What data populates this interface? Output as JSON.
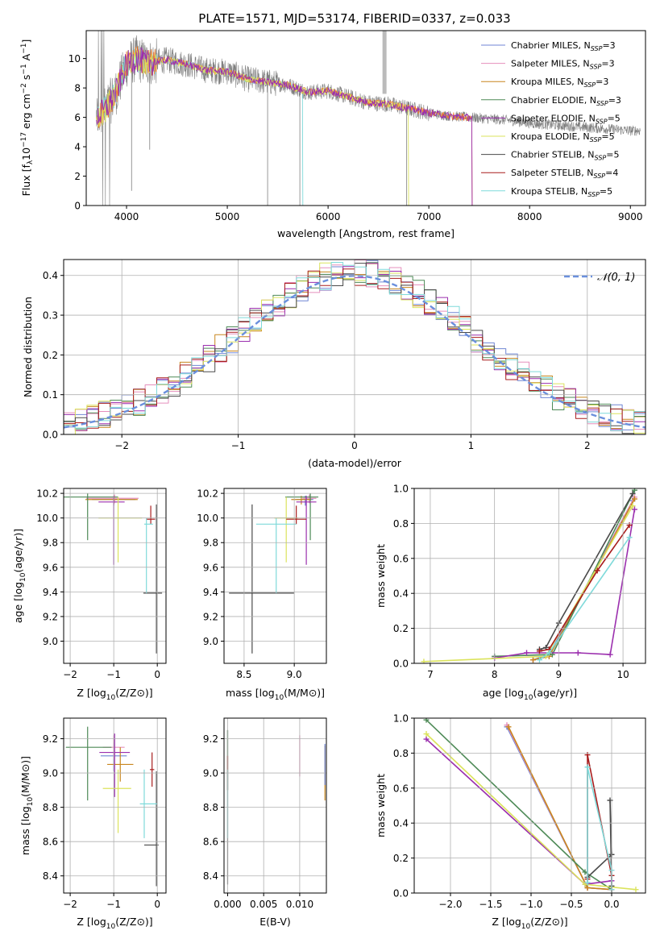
{
  "title": "PLATE=1571, MJD=53174, FIBERID=0337, z=0.033",
  "colors": {
    "Chabrier MILES": "#6f86d4",
    "Salpeter MILES": "#e58fbc",
    "Kroupa MILES": "#c8861e",
    "Chabrier ELODIE": "#4e8a57",
    "Salpeter ELODIE": "#9b2fae",
    "Kroupa ELODIE": "#dbe35c",
    "Chabrier STELIB": "#4a4a4a",
    "Salpeter STELIB": "#a81d1d",
    "Kroupa STELIB": "#7fdada",
    "data": "#7f7f7f",
    "model_orange": "#f08030",
    "normal": "#6a8fdc"
  },
  "chart_data": [
    {
      "id": "spectrum",
      "type": "line",
      "title": "PLATE=1571, MJD=53174, FIBERID=0337, z=0.033",
      "xlabel": "wavelength [Angstrom, rest frame]",
      "ylabel": "Flux [f_λ10^-17 erg cm^-2 s^-1 A^-1]",
      "xlim": [
        3600,
        9150
      ],
      "ylim": [
        0,
        11.9
      ],
      "xticks": [
        4000,
        5000,
        6000,
        7000,
        8000,
        9000
      ],
      "yticks": [
        0,
        2,
        4,
        6,
        8,
        10
      ],
      "legend_position": "top-right",
      "legend": [
        {
          "base": "Chabrier MILES, N",
          "sub": "SSP",
          "tail": "=3"
        },
        {
          "base": "Salpeter MILES, N",
          "sub": "SSP",
          "tail": "=3"
        },
        {
          "base": "Kroupa MILES, N",
          "sub": "SSP",
          "tail": "=3"
        },
        {
          "base": "Chabrier ELODIE, N",
          "sub": "SSP",
          "tail": "=3"
        },
        {
          "base": "Salpeter ELODIE, N",
          "sub": "SSP",
          "tail": "=5"
        },
        {
          "base": "Kroupa ELODIE, N",
          "sub": "SSP",
          "tail": "=5"
        },
        {
          "base": "Chabrier STELIB, N",
          "sub": "SSP",
          "tail": "=5"
        },
        {
          "base": "Salpeter STELIB, N",
          "sub": "SSP",
          "tail": "=4"
        },
        {
          "base": "Kroupa STELIB, N",
          "sub": "SSP",
          "tail": "=5"
        }
      ],
      "continuum": {
        "x": [
          3700,
          3800,
          3900,
          4000,
          4100,
          4200,
          4400,
          4600,
          4800,
          5000,
          5200,
          5400,
          5600,
          5800,
          6000,
          6200,
          6400,
          6600,
          6800,
          7000,
          7200,
          7400,
          7600,
          7800,
          8000,
          8200,
          8400,
          8600,
          8800,
          9000
        ],
        "y": [
          6.0,
          6.6,
          7.8,
          9.6,
          10.0,
          9.7,
          9.9,
          9.6,
          9.2,
          9.1,
          8.6,
          8.4,
          8.2,
          7.7,
          7.8,
          7.4,
          7.0,
          6.9,
          6.6,
          6.3,
          6.1,
          6.0,
          5.9,
          5.8,
          5.6,
          5.5,
          5.4,
          5.3,
          5.2,
          5.1
        ]
      },
      "data_xrange": [
        3700,
        9100
      ],
      "model_end": {
        "Kroupa STELIB": 5750,
        "Kroupa ELODIE": 6800,
        "Chabrier MILES": 7430
      }
    },
    {
      "id": "residuals",
      "type": "histogram",
      "xlabel": "(data-model)/error",
      "ylabel": "Normed distribution",
      "xlim": [
        -2.5,
        2.5
      ],
      "ylim": [
        0,
        0.44
      ],
      "xticks": [
        -2,
        -1,
        0,
        1,
        2
      ],
      "yticks": [
        0.0,
        0.1,
        0.2,
        0.3,
        0.4
      ],
      "bin_width": 0.1,
      "legend": [
        {
          "label": "𝒩(0, 1)",
          "style": "dashed"
        }
      ],
      "legend_position": "top-right",
      "note": "step histograms for the 9 SSP fits plus standard normal PDF"
    },
    {
      "id": "age-vs-Z",
      "type": "errorbar",
      "xlabel_base": "Z [log",
      "xlabel_sub": "10",
      "xlabel_tail": "(Z/Z⊙)]",
      "ylabel": "age  [log10(age/yr)]",
      "xlim": [
        -2.15,
        0.2
      ],
      "ylim": [
        8.82,
        10.24
      ],
      "xticks": [
        -2,
        -1,
        0
      ],
      "yticks": [
        9.0,
        9.2,
        9.4,
        9.6,
        9.8,
        10.0,
        10.2
      ],
      "points": [
        {
          "model": "Chabrier MILES",
          "x": -1.0,
          "xerr": [
            0.5,
            0.5
          ],
          "y": 10.15,
          "yerr": [
            0.05,
            0.03
          ]
        },
        {
          "model": "Salpeter MILES",
          "x": -0.98,
          "xerr": [
            0.65,
            0.55
          ],
          "y": 10.16,
          "yerr": [
            0.04,
            0.03
          ]
        },
        {
          "model": "Kroupa MILES",
          "x": -1.0,
          "xerr": [
            0.65,
            0.55
          ],
          "y": 10.15,
          "yerr": [
            0.04,
            0.03
          ]
        },
        {
          "model": "Chabrier ELODIE",
          "x": -1.6,
          "xerr": [
            0.55,
            0.7
          ],
          "y": 10.17,
          "yerr": [
            0.35,
            0.03
          ]
        },
        {
          "model": "Salpeter ELODIE",
          "x": -1.0,
          "xerr": [
            0.35,
            0.25
          ],
          "y": 10.13,
          "yerr": [
            0.51,
            0.05
          ]
        },
        {
          "model": "Kroupa ELODIE",
          "x": -0.9,
          "xerr": [
            0.45,
            0.55
          ],
          "y": 10.0,
          "yerr": [
            0.36,
            0.17
          ]
        },
        {
          "model": "Chabrier STELIB",
          "x": -0.02,
          "xerr": [
            0.3,
            0.13
          ],
          "y": 9.39,
          "yerr": [
            0.49,
            0.72
          ]
        },
        {
          "model": "Salpeter STELIB",
          "x": -0.15,
          "xerr": [
            0.1,
            0.1
          ],
          "y": 9.99,
          "yerr": [
            0.04,
            0.11
          ]
        },
        {
          "model": "Kroupa STELIB",
          "x": -0.25,
          "xerr": [
            0.05,
            0.15
          ],
          "y": 9.95,
          "yerr": [
            0.56,
            0.05
          ]
        }
      ]
    },
    {
      "id": "age-vs-mass",
      "type": "errorbar",
      "xlabel_base": "mass [log",
      "xlabel_sub": "10",
      "xlabel_tail": "(M/M⊙)]",
      "xlim": [
        8.3,
        9.32
      ],
      "ylim": [
        8.82,
        10.24
      ],
      "xticks": [
        8.5,
        9.0
      ],
      "yticks": [
        9.0,
        9.2,
        9.4,
        9.6,
        9.8,
        10.0,
        10.2
      ],
      "points": [
        {
          "model": "Chabrier MILES",
          "x": 9.11,
          "xerr": [
            0.09,
            0.08
          ],
          "y": 10.15,
          "yerr": [
            0.05,
            0.03
          ]
        },
        {
          "model": "Salpeter MILES",
          "x": 9.15,
          "xerr": [
            0.07,
            0.07
          ],
          "y": 10.16,
          "yerr": [
            0.04,
            0.03
          ]
        },
        {
          "model": "Kroupa MILES",
          "x": 9.07,
          "xerr": [
            0.1,
            0.1
          ],
          "y": 10.15,
          "yerr": [
            0.04,
            0.03
          ]
        },
        {
          "model": "Chabrier ELODIE",
          "x": 9.16,
          "xerr": [
            0.25,
            0.08
          ],
          "y": 10.17,
          "yerr": [
            0.35,
            0.03
          ]
        },
        {
          "model": "Salpeter ELODIE",
          "x": 9.12,
          "xerr": [
            0.1,
            0.1
          ],
          "y": 10.13,
          "yerr": [
            0.51,
            0.05
          ]
        },
        {
          "model": "Kroupa ELODIE",
          "x": 8.92,
          "xerr": [
            0.12,
            0.12
          ],
          "y": 10.0,
          "yerr": [
            0.36,
            0.17
          ]
        },
        {
          "model": "Chabrier STELIB",
          "x": 8.58,
          "xerr": [
            0.23,
            0.42
          ],
          "y": 9.39,
          "yerr": [
            0.49,
            0.72
          ]
        },
        {
          "model": "Salpeter STELIB",
          "x": 9.02,
          "xerr": [
            0.1,
            0.1
          ],
          "y": 9.99,
          "yerr": [
            0.04,
            0.11
          ]
        },
        {
          "model": "Kroupa STELIB",
          "x": 8.82,
          "xerr": [
            0.2,
            0.2
          ],
          "y": 9.95,
          "yerr": [
            0.56,
            0.05
          ]
        }
      ]
    },
    {
      "id": "massweight-vs-age",
      "type": "line",
      "xlabel_base": "age  [log",
      "xlabel_sub": "10",
      "xlabel_tail": "(age/yr)]",
      "ylabel": "mass weight",
      "xlim": [
        6.75,
        10.35
      ],
      "ylim": [
        0,
        1
      ],
      "xticks": [
        7,
        8,
        9,
        10
      ],
      "yticks": [
        0.0,
        0.2,
        0.4,
        0.6,
        0.8,
        1.0
      ],
      "series": [
        {
          "model": "Chabrier MILES",
          "x": [
            8.6,
            8.85,
            10.15
          ],
          "y": [
            0.02,
            0.05,
            0.93
          ]
        },
        {
          "model": "Salpeter MILES",
          "x": [
            8.6,
            8.85,
            10.18
          ],
          "y": [
            0.02,
            0.04,
            0.95
          ]
        },
        {
          "model": "Kroupa MILES",
          "x": [
            8.6,
            8.85,
            10.18
          ],
          "y": [
            0.02,
            0.04,
            0.94
          ]
        },
        {
          "model": "Chabrier ELODIE",
          "x": [
            8.0,
            8.9,
            10.18
          ],
          "y": [
            0.04,
            0.05,
            0.99
          ]
        },
        {
          "model": "Salpeter ELODIE",
          "x": [
            8.0,
            8.5,
            9.3,
            9.8,
            10.18
          ],
          "y": [
            0.03,
            0.06,
            0.06,
            0.05,
            0.88
          ]
        },
        {
          "model": "Kroupa ELODIE",
          "x": [
            6.9,
            8.8,
            10.15
          ],
          "y": [
            0.01,
            0.04,
            0.9
          ]
        },
        {
          "model": "Chabrier STELIB",
          "x": [
            8.7,
            8.8,
            9.0,
            10.15
          ],
          "y": [
            0.08,
            0.09,
            0.23,
            0.97
          ]
        },
        {
          "model": "Salpeter STELIB",
          "x": [
            8.7,
            8.85,
            9.6,
            10.1
          ],
          "y": [
            0.07,
            0.08,
            0.53,
            0.79
          ]
        },
        {
          "model": "Kroupa STELIB",
          "x": [
            8.7,
            8.85,
            10.1
          ],
          "y": [
            0.02,
            0.06,
            0.72
          ]
        }
      ]
    },
    {
      "id": "mass-vs-Z",
      "type": "errorbar",
      "xlabel_base": "Z [log",
      "xlabel_sub": "10",
      "xlabel_tail": "(Z/Z⊙)]",
      "ylabel": "mass [log10(M/M⊙)]",
      "xlim": [
        -2.15,
        0.2
      ],
      "ylim": [
        8.3,
        9.32
      ],
      "xticks": [
        -2,
        -1,
        0
      ],
      "yticks": [
        8.4,
        8.6,
        8.8,
        9.0,
        9.2
      ],
      "points": [
        {
          "model": "Chabrier MILES",
          "x": -1.0,
          "xerr": [
            0.3,
            0.3
          ],
          "y": 9.1,
          "yerr": [
            0.09,
            0.08
          ]
        },
        {
          "model": "Salpeter MILES",
          "x": -1.0,
          "xerr": [
            0.25,
            0.25
          ],
          "y": 9.15,
          "yerr": [
            0.07,
            0.07
          ]
        },
        {
          "model": "Kroupa MILES",
          "x": -0.85,
          "xerr": [
            0.3,
            0.3
          ],
          "y": 9.05,
          "yerr": [
            0.1,
            0.1
          ]
        },
        {
          "model": "Chabrier ELODIE",
          "x": -1.6,
          "xerr": [
            0.5,
            0.55
          ],
          "y": 9.15,
          "yerr": [
            0.31,
            0.12
          ]
        },
        {
          "model": "Salpeter ELODIE",
          "x": -0.98,
          "xerr": [
            0.35,
            0.35
          ],
          "y": 9.12,
          "yerr": [
            0.26,
            0.11
          ]
        },
        {
          "model": "Kroupa ELODIE",
          "x": -0.9,
          "xerr": [
            0.35,
            0.3
          ],
          "y": 8.91,
          "yerr": [
            0.26,
            0.11
          ]
        },
        {
          "model": "Chabrier STELIB",
          "x": -0.02,
          "xerr": [
            0.28,
            0.05
          ],
          "y": 8.58,
          "yerr": [
            0.24,
            0.43
          ]
        },
        {
          "model": "Salpeter STELIB",
          "x": -0.12,
          "xerr": [
            0.05,
            0.05
          ],
          "y": 9.02,
          "yerr": [
            0.1,
            0.1
          ]
        },
        {
          "model": "Kroupa STELIB",
          "x": -0.3,
          "xerr": [
            0.1,
            0.3
          ],
          "y": 8.82,
          "yerr": [
            0.2,
            0.2
          ]
        }
      ]
    },
    {
      "id": "mass-vs-ebv",
      "type": "errorbar",
      "xlabel": "E(B-V)",
      "xlim": [
        -0.0005,
        0.0137
      ],
      "ylim": [
        8.3,
        9.32
      ],
      "xticks": [
        0.0,
        0.005,
        0.01
      ],
      "xticklabels": [
        "0.000",
        "0.005",
        "0.010"
      ],
      "yticks": [
        8.4,
        8.6,
        8.8,
        9.0,
        9.2
      ],
      "points": [
        {
          "model": "Chabrier STELIB",
          "x": 0.0,
          "y": 8.8,
          "yerr": [
            0.45,
            0.45
          ]
        },
        {
          "model": "Chabrier ELODIE",
          "x": 0.0,
          "y": 9.1,
          "yerr": [
            0.2,
            0.15
          ]
        },
        {
          "model": "Salpeter STELIB",
          "x": 0.0,
          "y": 9.0,
          "yerr": [
            0.1,
            0.1
          ]
        },
        {
          "model": "Kroupa STELIB",
          "x": 0.0,
          "y": 8.82,
          "yerr": [
            0.2,
            0.2
          ]
        },
        {
          "model": "Salpeter MILES",
          "x": 0.01,
          "y": 9.1,
          "yerr": [
            0.12,
            0.12
          ]
        },
        {
          "model": "Kroupa MILES",
          "x": 0.0135,
          "y": 9.0,
          "yerr": [
            0.16,
            0.16
          ]
        },
        {
          "model": "Chabrier MILES",
          "x": 0.0135,
          "y": 9.05,
          "yerr": [
            0.12,
            0.12
          ]
        }
      ]
    },
    {
      "id": "massweight-vs-Z",
      "type": "line",
      "xlabel_base": "Z [log",
      "xlabel_sub": "10",
      "xlabel_tail": "(Z/Z⊙)]",
      "ylabel": "mass weight",
      "xlim": [
        -2.45,
        0.42
      ],
      "ylim": [
        0,
        1
      ],
      "xticks": [
        -2.0,
        -1.5,
        -1.0,
        -0.5,
        0.0
      ],
      "xticklabels": [
        "−2.0",
        "−1.5",
        "−1.0",
        "−0.5",
        "0.0"
      ],
      "yticks": [
        0.0,
        0.2,
        0.4,
        0.6,
        0.8,
        1.0
      ],
      "series": [
        {
          "model": "Chabrier MILES",
          "x": [
            -1.3,
            -0.3,
            0.0
          ],
          "y": [
            0.95,
            0.03,
            0.02
          ]
        },
        {
          "model": "Salpeter MILES",
          "x": [
            -1.3,
            -0.3,
            0.0
          ],
          "y": [
            0.96,
            0.03,
            0.02
          ]
        },
        {
          "model": "Kroupa MILES",
          "x": [
            -1.28,
            -0.3,
            0.0
          ],
          "y": [
            0.95,
            0.03,
            0.02
          ]
        },
        {
          "model": "Chabrier ELODIE",
          "x": [
            -2.3,
            -0.33,
            0.0
          ],
          "y": [
            0.99,
            0.12,
            0.02
          ]
        },
        {
          "model": "Salpeter ELODIE",
          "x": [
            -2.3,
            -0.33,
            0.0
          ],
          "y": [
            0.88,
            0.05,
            0.07
          ]
        },
        {
          "model": "Kroupa ELODIE",
          "x": [
            -2.3,
            -0.33,
            0.3
          ],
          "y": [
            0.91,
            0.05,
            0.02
          ]
        },
        {
          "model": "Chabrier STELIB",
          "x": [
            -0.3,
            0.0,
            -0.02,
            0.0
          ],
          "y": [
            0.09,
            0.22,
            0.53,
            0.04
          ]
        },
        {
          "model": "Salpeter STELIB",
          "x": [
            -0.3,
            -0.3,
            0.0,
            0.0
          ],
          "y": [
            0.08,
            0.79,
            0.1,
            0.02
          ]
        },
        {
          "model": "Kroupa STELIB",
          "x": [
            -0.3,
            -0.3,
            0.0,
            0.0
          ],
          "y": [
            0.06,
            0.72,
            0.13,
            0.02
          ]
        }
      ]
    }
  ]
}
